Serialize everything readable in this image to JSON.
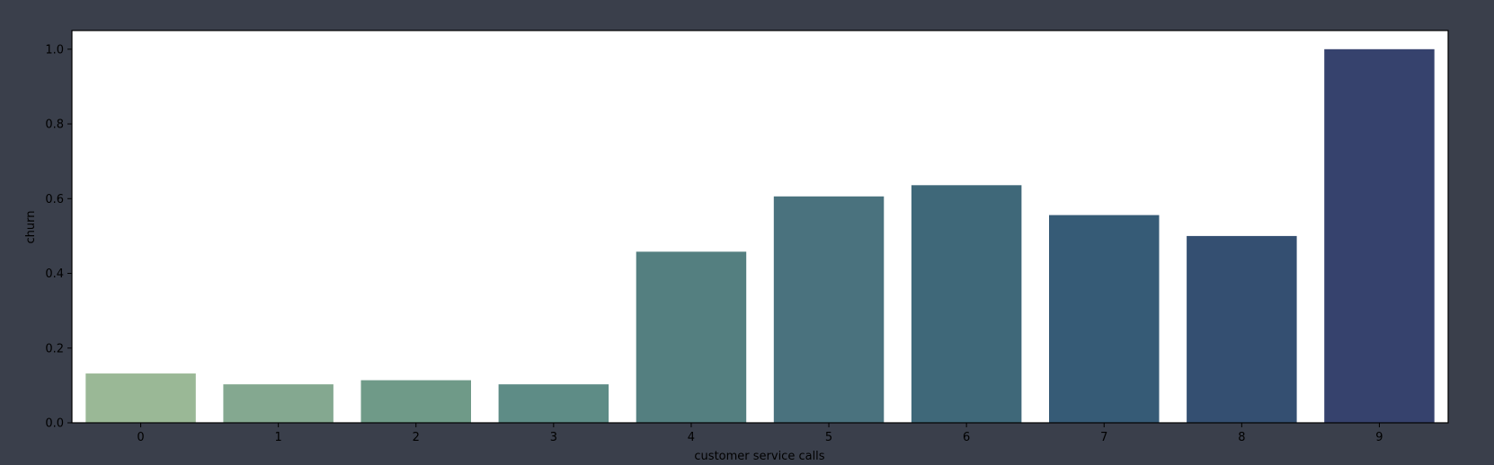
{
  "chart_data": {
    "type": "bar",
    "categories": [
      "0",
      "1",
      "2",
      "3",
      "4",
      "5",
      "6",
      "7",
      "8",
      "9"
    ],
    "values": [
      0.132,
      0.103,
      0.114,
      0.103,
      0.458,
      0.606,
      0.636,
      0.556,
      0.5,
      1.0
    ],
    "colors": [
      "#9ab896",
      "#84a890",
      "#6f9a88",
      "#5e8c86",
      "#547f80",
      "#4a727e",
      "#3f6879",
      "#365b76",
      "#344f71",
      "#36426d"
    ],
    "title": "",
    "xlabel": "customer service calls",
    "ylabel": "churn",
    "ylim": [
      0,
      1.05
    ],
    "yticks": [
      "0.0",
      "0.2",
      "0.4",
      "0.6",
      "0.8",
      "1.0"
    ],
    "grid": false
  }
}
